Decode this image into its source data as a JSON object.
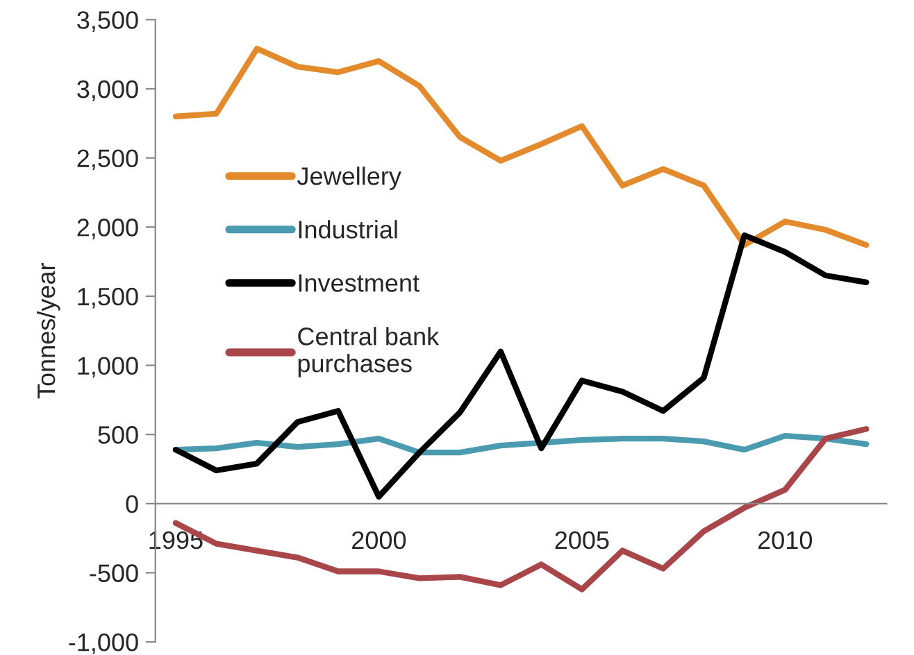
{
  "chart_data": {
    "type": "line",
    "ylabel": "Tonnes/year",
    "categories": [
      "1995",
      null,
      null,
      null,
      null,
      "2000",
      null,
      null,
      null,
      null,
      "2005",
      null,
      null,
      null,
      null,
      "2010",
      null,
      null
    ],
    "series": [
      {
        "name": "Jewellery",
        "color": "#e38b2c",
        "values": [
          2800,
          2820,
          3290,
          3160,
          3120,
          3200,
          3020,
          2650,
          2480,
          2600,
          2730,
          2300,
          2420,
          2300,
          1870,
          2040,
          1980,
          1870
        ]
      },
      {
        "name": "Industrial",
        "color": "#4a9bb0",
        "values": [
          390,
          400,
          440,
          410,
          430,
          470,
          370,
          370,
          420,
          440,
          460,
          470,
          470,
          450,
          390,
          490,
          470,
          430
        ]
      },
      {
        "name": "Investment",
        "color": "#000000",
        "values": [
          390,
          240,
          290,
          590,
          670,
          50,
          370,
          660,
          1100,
          400,
          890,
          810,
          670,
          910,
          1940,
          1820,
          1650,
          1600
        ]
      },
      {
        "name": "Central bank\npurchases",
        "color": "#a8464a",
        "values": [
          -140,
          -290,
          -340,
          -390,
          -490,
          -490,
          -540,
          -530,
          -590,
          -440,
          -620,
          -340,
          -470,
          -200,
          -30,
          100,
          470,
          540
        ]
      }
    ],
    "ylim": [
      -1000,
      3500
    ],
    "yticks": [
      {
        "value": -1000,
        "label": "-1,000"
      },
      -500,
      0,
      500,
      {
        "value": 1000,
        "label": "1,000"
      },
      {
        "value": 1500,
        "label": "1,500"
      },
      {
        "value": 2000,
        "label": "2,000"
      },
      {
        "value": 2500,
        "label": "2,500"
      },
      {
        "value": 3000,
        "label": "3,000"
      },
      {
        "value": 3500,
        "label": "3,500"
      }
    ],
    "legend": "top left",
    "marker": "none",
    "line_style": "solid"
  }
}
